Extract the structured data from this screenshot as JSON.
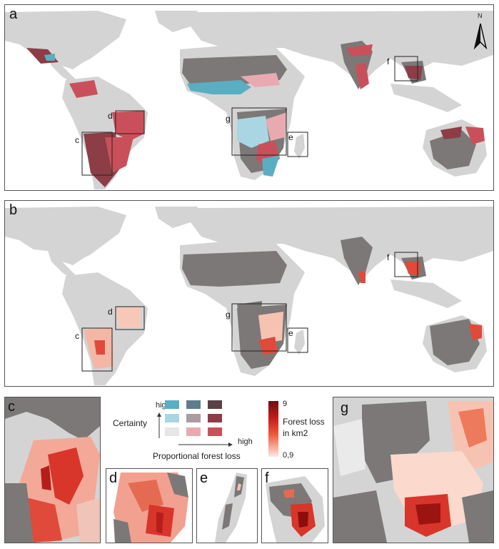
{
  "panels": {
    "a": "a",
    "b": "b",
    "c": "c",
    "d": "d",
    "e": "e",
    "f": "f",
    "g": "g"
  },
  "north_arrow": {
    "label": "N",
    "icon": "north-arrow-icon"
  },
  "box_labels": [
    "c",
    "d",
    "e",
    "f",
    "g"
  ],
  "legend_bivariate": {
    "y_label": "Certainty",
    "y_high": "high",
    "x_label": "Proportional forest loss",
    "x_high": "high",
    "colors": [
      [
        "#5aaec1",
        "#5e7d8b",
        "#5a4046"
      ],
      [
        "#a9d6e2",
        "#aa9ca1",
        "#8c3d46"
      ],
      [
        "#e6e6e6",
        "#e8aab0",
        "#c9505a"
      ]
    ]
  },
  "legend_continuous": {
    "title_line1": "Forest loss",
    "title_line2": "in km2",
    "max_label": "9",
    "min_label": "0,9",
    "color_high": "#6e0d12",
    "color_low": "#fde8e2"
  },
  "colors": {
    "land": "#d4d4d4",
    "no_forest_dark": "#7c7878",
    "sea": "#ffffff"
  }
}
